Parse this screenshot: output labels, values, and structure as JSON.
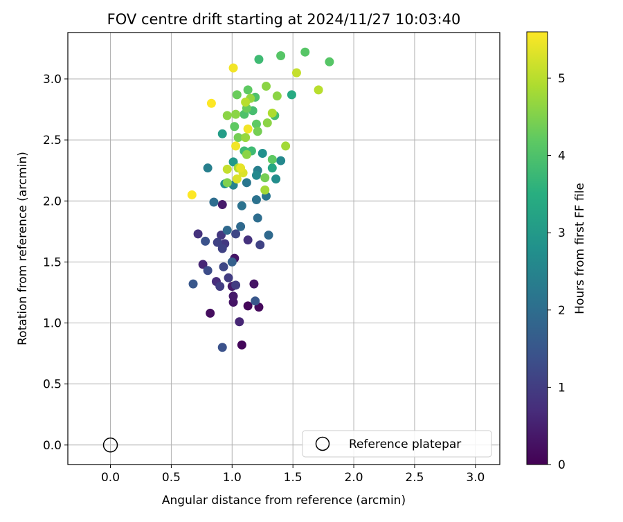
{
  "chart_data": {
    "type": "scatter",
    "title": "FOV centre drift starting at 2024/11/27 10:03:40",
    "xlabel": "Angular distance from reference (arcmin)",
    "ylabel": "Rotation from reference (arcmin)",
    "xlim": [
      -0.35,
      3.2
    ],
    "ylim": [
      -0.16,
      3.38
    ],
    "xticks": [
      "0.0",
      "0.5",
      "1.0",
      "1.5",
      "2.0",
      "2.5",
      "3.0"
    ],
    "yticks": [
      "0.0",
      "0.5",
      "1.0",
      "1.5",
      "2.0",
      "2.5",
      "3.0"
    ],
    "grid": true,
    "colormap": "viridis",
    "colorbar": {
      "label": "Hours from first FF file",
      "range": [
        0,
        5.6
      ],
      "ticks": [
        "0",
        "1",
        "2",
        "3",
        "4",
        "5"
      ]
    },
    "legend": {
      "placement": "lower-right",
      "entries": [
        "Reference platepar"
      ]
    },
    "reference_point": {
      "x": 0.0,
      "y": 0.0,
      "marker": "open-circle"
    },
    "points": [
      {
        "x": 1.08,
        "y": 0.82,
        "c": 0.1
      },
      {
        "x": 1.13,
        "y": 1.14,
        "c": 0.1
      },
      {
        "x": 1.22,
        "y": 1.13,
        "c": 0.15
      },
      {
        "x": 0.82,
        "y": 1.08,
        "c": 0.2
      },
      {
        "x": 1.18,
        "y": 1.32,
        "c": 0.3
      },
      {
        "x": 1.01,
        "y": 1.17,
        "c": 0.3
      },
      {
        "x": 1.02,
        "y": 1.53,
        "c": 0.3
      },
      {
        "x": 0.92,
        "y": 1.97,
        "c": 0.4
      },
      {
        "x": 1.01,
        "y": 1.22,
        "c": 0.4
      },
      {
        "x": 1.0,
        "y": 1.3,
        "c": 0.4
      },
      {
        "x": 1.06,
        "y": 1.01,
        "c": 0.6
      },
      {
        "x": 0.76,
        "y": 1.48,
        "c": 0.6
      },
      {
        "x": 0.87,
        "y": 1.34,
        "c": 0.7
      },
      {
        "x": 1.13,
        "y": 1.68,
        "c": 0.8
      },
      {
        "x": 0.72,
        "y": 1.73,
        "c": 0.8
      },
      {
        "x": 0.91,
        "y": 1.72,
        "c": 0.9
      },
      {
        "x": 0.94,
        "y": 1.65,
        "c": 0.9
      },
      {
        "x": 0.97,
        "y": 1.37,
        "c": 1.0
      },
      {
        "x": 1.03,
        "y": 1.31,
        "c": 1.0
      },
      {
        "x": 0.9,
        "y": 1.3,
        "c": 1.0
      },
      {
        "x": 0.88,
        "y": 1.66,
        "c": 1.1
      },
      {
        "x": 0.92,
        "y": 1.61,
        "c": 1.1
      },
      {
        "x": 1.23,
        "y": 1.64,
        "c": 1.1
      },
      {
        "x": 1.03,
        "y": 1.73,
        "c": 1.2
      },
      {
        "x": 0.93,
        "y": 1.46,
        "c": 1.2
      },
      {
        "x": 0.8,
        "y": 1.43,
        "c": 1.3
      },
      {
        "x": 0.92,
        "y": 0.8,
        "c": 1.4
      },
      {
        "x": 0.78,
        "y": 1.67,
        "c": 1.4
      },
      {
        "x": 0.68,
        "y": 1.32,
        "c": 1.5
      },
      {
        "x": 1.19,
        "y": 1.18,
        "c": 1.5
      },
      {
        "x": 1.0,
        "y": 1.5,
        "c": 1.7
      },
      {
        "x": 1.07,
        "y": 1.79,
        "c": 1.9
      },
      {
        "x": 0.96,
        "y": 1.76,
        "c": 1.9
      },
      {
        "x": 1.3,
        "y": 1.72,
        "c": 1.9
      },
      {
        "x": 1.21,
        "y": 1.86,
        "c": 2.0
      },
      {
        "x": 0.85,
        "y": 1.99,
        "c": 2.0
      },
      {
        "x": 1.08,
        "y": 1.96,
        "c": 2.1
      },
      {
        "x": 1.2,
        "y": 2.01,
        "c": 2.1
      },
      {
        "x": 1.28,
        "y": 2.04,
        "c": 2.2
      },
      {
        "x": 1.12,
        "y": 2.15,
        "c": 2.2
      },
      {
        "x": 0.8,
        "y": 2.27,
        "c": 2.4
      },
      {
        "x": 1.21,
        "y": 2.25,
        "c": 2.4
      },
      {
        "x": 1.01,
        "y": 2.13,
        "c": 2.5
      },
      {
        "x": 1.4,
        "y": 2.33,
        "c": 2.6
      },
      {
        "x": 1.2,
        "y": 2.21,
        "c": 2.6
      },
      {
        "x": 1.36,
        "y": 2.18,
        "c": 2.7
      },
      {
        "x": 0.94,
        "y": 2.14,
        "c": 2.8
      },
      {
        "x": 1.25,
        "y": 2.39,
        "c": 2.8
      },
      {
        "x": 1.01,
        "y": 2.32,
        "c": 3.0
      },
      {
        "x": 0.92,
        "y": 2.55,
        "c": 3.1
      },
      {
        "x": 1.33,
        "y": 2.27,
        "c": 3.3
      },
      {
        "x": 1.49,
        "y": 2.87,
        "c": 3.4
      },
      {
        "x": 1.22,
        "y": 3.16,
        "c": 3.8
      },
      {
        "x": 1.16,
        "y": 2.41,
        "c": 3.8
      },
      {
        "x": 1.1,
        "y": 2.41,
        "c": 3.8
      },
      {
        "x": 1.17,
        "y": 2.74,
        "c": 3.9
      },
      {
        "x": 1.35,
        "y": 2.7,
        "c": 3.9
      },
      {
        "x": 1.1,
        "y": 2.71,
        "c": 4.0
      },
      {
        "x": 1.19,
        "y": 2.85,
        "c": 4.0
      },
      {
        "x": 1.6,
        "y": 3.22,
        "c": 4.1
      },
      {
        "x": 1.4,
        "y": 3.19,
        "c": 4.1
      },
      {
        "x": 1.8,
        "y": 3.14,
        "c": 4.1
      },
      {
        "x": 1.33,
        "y": 2.34,
        "c": 4.2
      },
      {
        "x": 1.02,
        "y": 2.61,
        "c": 4.2
      },
      {
        "x": 1.13,
        "y": 2.91,
        "c": 4.2
      },
      {
        "x": 1.2,
        "y": 2.63,
        "c": 4.2
      },
      {
        "x": 1.04,
        "y": 2.87,
        "c": 4.3
      },
      {
        "x": 1.12,
        "y": 2.76,
        "c": 4.3
      },
      {
        "x": 1.21,
        "y": 2.57,
        "c": 4.4
      },
      {
        "x": 1.27,
        "y": 2.19,
        "c": 4.4
      },
      {
        "x": 1.05,
        "y": 2.52,
        "c": 4.4
      },
      {
        "x": 0.96,
        "y": 2.15,
        "c": 4.5
      },
      {
        "x": 1.29,
        "y": 2.64,
        "c": 4.6
      },
      {
        "x": 1.28,
        "y": 2.94,
        "c": 4.6
      },
      {
        "x": 1.37,
        "y": 2.86,
        "c": 4.6
      },
      {
        "x": 1.03,
        "y": 2.71,
        "c": 4.6
      },
      {
        "x": 0.96,
        "y": 2.7,
        "c": 4.6
      },
      {
        "x": 1.12,
        "y": 2.38,
        "c": 4.6
      },
      {
        "x": 1.15,
        "y": 2.84,
        "c": 4.7
      },
      {
        "x": 1.11,
        "y": 2.52,
        "c": 4.7
      },
      {
        "x": 1.44,
        "y": 2.45,
        "c": 4.8
      },
      {
        "x": 1.27,
        "y": 2.09,
        "c": 4.8
      },
      {
        "x": 1.33,
        "y": 2.72,
        "c": 4.9
      },
      {
        "x": 1.05,
        "y": 2.27,
        "c": 4.9
      },
      {
        "x": 1.11,
        "y": 2.81,
        "c": 5.0
      },
      {
        "x": 1.71,
        "y": 2.91,
        "c": 5.0
      },
      {
        "x": 1.53,
        "y": 3.05,
        "c": 5.1
      },
      {
        "x": 0.96,
        "y": 2.26,
        "c": 5.1
      },
      {
        "x": 1.04,
        "y": 2.18,
        "c": 5.3
      },
      {
        "x": 1.09,
        "y": 2.23,
        "c": 5.3
      },
      {
        "x": 1.07,
        "y": 2.27,
        "c": 5.4
      },
      {
        "x": 1.03,
        "y": 2.45,
        "c": 5.5
      },
      {
        "x": 1.13,
        "y": 2.59,
        "c": 5.5
      },
      {
        "x": 1.01,
        "y": 3.09,
        "c": 5.5
      },
      {
        "x": 0.83,
        "y": 2.8,
        "c": 5.6
      },
      {
        "x": 0.67,
        "y": 2.05,
        "c": 5.6
      }
    ]
  }
}
